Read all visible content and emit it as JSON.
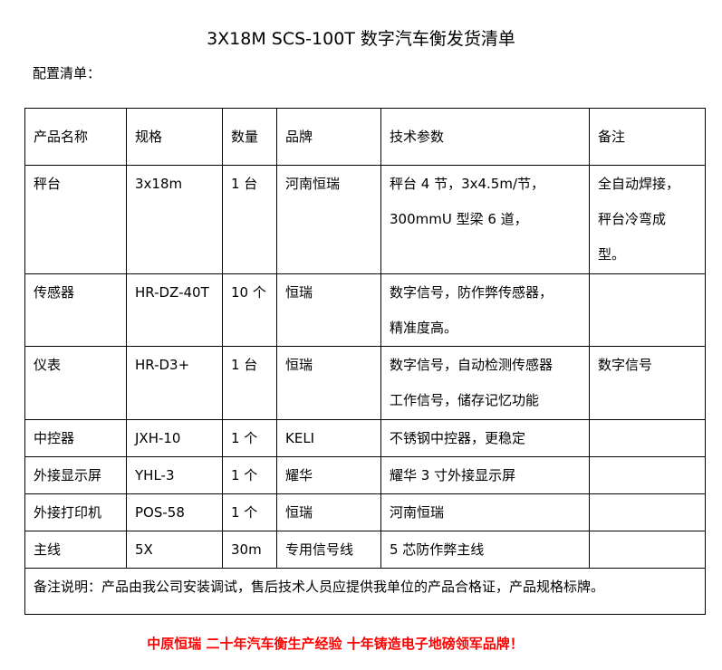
{
  "title": "3X18M SCS-100T 数字汽车衡发货清单",
  "subtitle": "配置清单：",
  "table": {
    "headers": [
      "产品名称",
      "规格",
      "数量",
      "品牌",
      "技术参数",
      "备注"
    ],
    "rows": [
      {
        "name": "秤台",
        "spec": "3x18m",
        "qty": "1 台",
        "brand": "河南恒瑞",
        "params": [
          "秤台 4 节，3x4.5m/节，",
          "300mmU 型梁 6 道，"
        ],
        "remark": [
          "全自动焊接，",
          "秤台冷弯成",
          "型。"
        ]
      },
      {
        "name": "传感器",
        "spec": "HR-DZ-40T",
        "qty": "10 个",
        "brand": "恒瑞",
        "params": [
          "数字信号，防作弊传感器，",
          "精准度高。"
        ],
        "remark": []
      },
      {
        "name": "仪表",
        "spec": "HR-D3+",
        "qty": "1 台",
        "brand": "恒瑞",
        "params": [
          "数字信号，自动检测传感器",
          "工作信号，储存记忆功能"
        ],
        "remark": [
          "数字信号"
        ]
      },
      {
        "name": "中控器",
        "spec": "JXH-10",
        "qty": "1 个",
        "brand": "KELI",
        "params": [
          "不锈钢中控器，更稳定"
        ],
        "remark": []
      },
      {
        "name": "外接显示屏",
        "spec": "YHL-3",
        "qty": "1 个",
        "brand": "耀华",
        "params": [
          "耀华 3 寸外接显示屏"
        ],
        "remark": []
      },
      {
        "name": "外接打印机",
        "spec": "POS-58",
        "qty": "1 个",
        "brand": "恒瑞",
        "params": [
          "河南恒瑞"
        ],
        "remark": []
      },
      {
        "name": "主线",
        "spec": "5X",
        "qty": "30m",
        "brand": "专用信号线",
        "params": [
          "5 芯防作弊主线"
        ],
        "remark": []
      }
    ],
    "note": "备注说明：产品由我公司安装调试，售后技术人员应提供我单位的产品合格证，产品规格标牌。"
  },
  "footer": "中原恒瑞 二十年汽车衡生产经验 十年铸造电子地磅领军品牌！",
  "colors": {
    "footer": "#ff0000"
  }
}
